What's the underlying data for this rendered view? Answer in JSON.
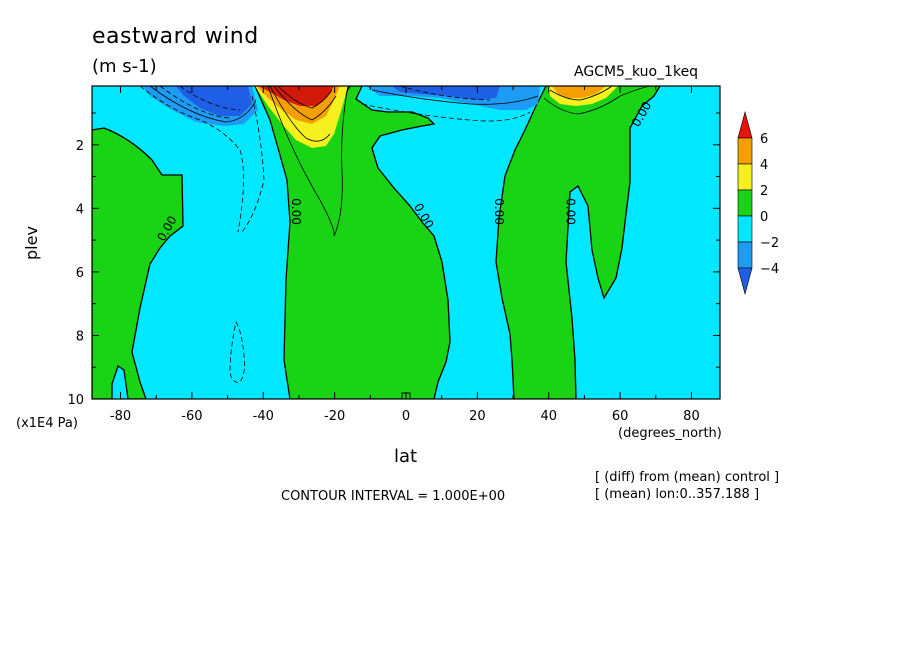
{
  "chart_data": {
    "type": "heatmap",
    "title": "eastward wind",
    "units": "(m s-1)",
    "run_name": "AGCM5_kuo_1keq",
    "xlabel": "lat",
    "xunit": "(degrees_north)",
    "ylabel": "plev",
    "yunit": "(x1E4 Pa)",
    "xlim": [
      -88,
      88
    ],
    "ylim": [
      10,
      0.15
    ],
    "xticks": [
      -80,
      -60,
      -40,
      -20,
      0,
      20,
      40,
      60,
      80
    ],
    "yticks": [
      2,
      4,
      6,
      8,
      10
    ],
    "contour_interval_text": "CONTOUR INTERVAL = 1.000E+00",
    "contour_labels": [
      {
        "text": "0.00",
        "lat": -66,
        "plev": 4.7
      },
      {
        "text": "0.00",
        "lat": -32,
        "plev": 4.1
      },
      {
        "text": "0.00",
        "lat": 4,
        "plev": 4.3
      },
      {
        "text": "0.00",
        "lat": 25,
        "plev": 4.1
      },
      {
        "text": "0.00",
        "lat": 45,
        "plev": 4.1
      },
      {
        "text": "0.00",
        "lat": 67,
        "plev": 1.1
      }
    ],
    "colorbar": {
      "levels": [
        -4,
        -2,
        0,
        2,
        4,
        6
      ],
      "bins": [
        {
          "range": "< -4",
          "color": "#1e5fe6"
        },
        {
          "range": "-4 to -2",
          "color": "#1e9cf5"
        },
        {
          "range": "-2 to 0",
          "color": "#00e8ff"
        },
        {
          "range": "0 to 2",
          "color": "#18d414"
        },
        {
          "range": "2 to 4",
          "color": "#f5f01e"
        },
        {
          "range": "4 to 6",
          "color": "#f5a000"
        },
        {
          "range": "> 6",
          "color": "#e8140a"
        }
      ]
    },
    "features": [
      {
        "desc": "westerly anomaly max",
        "lat": -32,
        "plev": 0.3,
        "value": "> 6"
      },
      {
        "desc": "easterly anomaly max",
        "lat": -47,
        "plev": 0.5,
        "value": "< -4"
      },
      {
        "desc": "easterly anomaly",
        "lat": 10,
        "plev": 0.6,
        "value": "-4 to -2"
      },
      {
        "desc": "westerly anomaly",
        "lat": 45,
        "plev": 0.3,
        "value": "> 4"
      }
    ]
  },
  "notes": [
    "[ (diff) from (mean) control ]",
    "[ (mean) lon:0..357.188 ]"
  ]
}
